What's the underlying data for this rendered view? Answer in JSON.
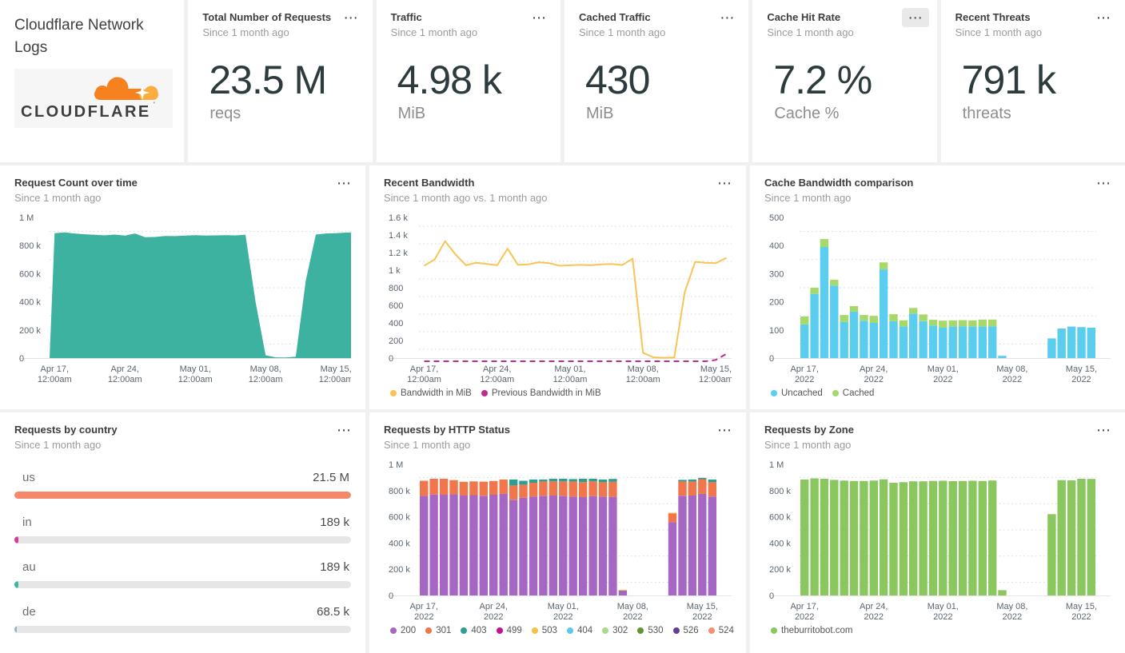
{
  "header": {
    "title": "Cloudflare Network Logs",
    "logo_text": "CLOUDFLARE",
    "logo_mark": "'"
  },
  "menu_icon": "⋯",
  "kpis": [
    {
      "title": "Total Number of Requests",
      "subtitle": "Since 1 month ago",
      "value": "23.5 M",
      "unit": "reqs"
    },
    {
      "title": "Traffic",
      "subtitle": "Since 1 month ago",
      "value": "4.98 k",
      "unit": "MiB"
    },
    {
      "title": "Cached Traffic",
      "subtitle": "Since 1 month ago",
      "value": "430",
      "unit": "MiB"
    },
    {
      "title": "Cache Hit Rate",
      "subtitle": "Since 1 month ago",
      "value": "7.2 %",
      "unit": "Cache %"
    },
    {
      "title": "Recent Threats",
      "subtitle": "Since 1 month ago",
      "value": "791 k",
      "unit": "threats"
    }
  ],
  "chart_data": [
    {
      "id": "request-count-over-time",
      "title": "Request Count over time",
      "subtitle": "Since 1 month ago",
      "type": "area",
      "color": "#3db2a0",
      "n": 30,
      "ymax": 1000,
      "ylabel_unit": "requests",
      "yticks": [
        {
          "v": 0,
          "l": "0"
        },
        {
          "v": 200,
          "l": "200 k"
        },
        {
          "v": 400,
          "l": "400 k"
        },
        {
          "v": 600,
          "l": "600 k"
        },
        {
          "v": 800,
          "l": "800 k"
        },
        {
          "v": 1000,
          "l": "1 M"
        }
      ],
      "xticks": [
        {
          "i": 0,
          "l1": "Apr 17,",
          "l2": "12:00am"
        },
        {
          "i": 7,
          "l1": "Apr 24,",
          "l2": "12:00am"
        },
        {
          "i": 14,
          "l1": "May 01,",
          "l2": "12:00am"
        },
        {
          "i": 21,
          "l1": "May 08,",
          "l2": "12:00am"
        },
        {
          "i": 28,
          "l1": "May 15,",
          "l2": "12:00am"
        }
      ],
      "values": [
        888,
        893,
        886,
        880,
        876,
        873,
        878,
        871,
        886,
        859,
        861,
        868,
        867,
        871,
        874,
        871,
        872,
        874,
        872,
        876,
        400,
        20,
        5,
        4,
        10,
        550,
        878,
        886,
        888,
        892
      ]
    },
    {
      "id": "recent-bandwidth",
      "title": "Recent Bandwidth",
      "subtitle": "Since 1 month ago vs. 1 month ago",
      "type": "line",
      "n": 30,
      "ymax": 1600,
      "yticks": [
        {
          "v": 0,
          "l": "0"
        },
        {
          "v": 200,
          "l": "200"
        },
        {
          "v": 400,
          "l": "400"
        },
        {
          "v": 600,
          "l": "600"
        },
        {
          "v": 800,
          "l": "800"
        },
        {
          "v": 1000,
          "l": "1 k"
        },
        {
          "v": 1200,
          "l": "1.2 k"
        },
        {
          "v": 1400,
          "l": "1.4 k"
        },
        {
          "v": 1600,
          "l": "1.6 k"
        }
      ],
      "xticks": [
        {
          "i": 0,
          "l1": "Apr 17,",
          "l2": "12:00am"
        },
        {
          "i": 7,
          "l1": "Apr 24,",
          "l2": "12:00am"
        },
        {
          "i": 14,
          "l1": "May 01,",
          "l2": "12:00am"
        },
        {
          "i": 21,
          "l1": "May 08,",
          "l2": "12:00am"
        },
        {
          "i": 28,
          "l1": "May 15,",
          "l2": "12:00am"
        }
      ],
      "series": [
        {
          "name": "Bandwidth in MiB",
          "color": "#f8c455",
          "values": [
            1050,
            1120,
            1330,
            1180,
            1055,
            1085,
            1070,
            1055,
            1245,
            1060,
            1065,
            1090,
            1080,
            1050,
            1055,
            1060,
            1055,
            1065,
            1070,
            1058,
            1130,
            60,
            8,
            4,
            6,
            750,
            1095,
            1085,
            1080,
            1140
          ]
        },
        {
          "name": "Previous Bandwidth in MiB",
          "color": "#c22b8c",
          "dash": "7 5",
          "offset": 4,
          "values": [
            0,
            0,
            0,
            0,
            0,
            0,
            0,
            0,
            0,
            0,
            0,
            0,
            0,
            0,
            0,
            0,
            0,
            0,
            0,
            0,
            0,
            0,
            0,
            0,
            0,
            0,
            0,
            0,
            15,
            85
          ]
        }
      ]
    },
    {
      "id": "cache-bandwidth-comparison",
      "title": "Cache Bandwidth comparison",
      "subtitle": "Since 1 month ago",
      "type": "stacked-bar",
      "n": 30,
      "ymax": 500,
      "yticks": [
        {
          "v": 0,
          "l": "0"
        },
        {
          "v": 100,
          "l": "100"
        },
        {
          "v": 200,
          "l": "200"
        },
        {
          "v": 300,
          "l": "300"
        },
        {
          "v": 400,
          "l": "400"
        },
        {
          "v": 500,
          "l": "500"
        }
      ],
      "xticks": [
        {
          "i": 0,
          "l1": "Apr 17,",
          "l2": "2022"
        },
        {
          "i": 7,
          "l1": "Apr 24,",
          "l2": "2022"
        },
        {
          "i": 14,
          "l1": "May 01,",
          "l2": "2022"
        },
        {
          "i": 21,
          "l1": "May 08,",
          "l2": "2022"
        },
        {
          "i": 28,
          "l1": "May 15,",
          "l2": "2022"
        }
      ],
      "series": [
        {
          "name": "Uncached",
          "color": "#5bcdef",
          "values": [
            120,
            228,
            395,
            258,
            128,
            165,
            133,
            125,
            315,
            131,
            112,
            158,
            131,
            116,
            108,
            112,
            113,
            112,
            112,
            113,
            8,
            0,
            0,
            0,
            0,
            70,
            105,
            112,
            110,
            108
          ]
        },
        {
          "name": "Cached",
          "color": "#a6d96a",
          "values": [
            28,
            22,
            28,
            20,
            25,
            20,
            20,
            25,
            25,
            25,
            22,
            20,
            24,
            20,
            25,
            22,
            22,
            22,
            25,
            24,
            0,
            0,
            0,
            0,
            0,
            0,
            0,
            0,
            0,
            0
          ]
        }
      ]
    },
    {
      "id": "requests-by-country",
      "title": "Requests by country",
      "subtitle": "Since 1 month ago",
      "type": "hbar",
      "rows": [
        {
          "label": "us",
          "value": "21.5 M",
          "pct": 100,
          "color": "#f5876b"
        },
        {
          "label": "in",
          "value": "189 k",
          "pct": 1.3,
          "color": "#da3a96"
        },
        {
          "label": "au",
          "value": "189 k",
          "pct": 1.3,
          "color": "#3fb5a5"
        },
        {
          "label": "de",
          "value": "68.5 k",
          "pct": 0.6,
          "color": "#8fb8bc"
        }
      ]
    },
    {
      "id": "requests-by-http-status",
      "title": "Requests by HTTP Status",
      "subtitle": "Since 1 month ago",
      "type": "stacked-bar",
      "n": 30,
      "ymax": 1000,
      "yticks": [
        {
          "v": 0,
          "l": "0"
        },
        {
          "v": 200,
          "l": "200 k"
        },
        {
          "v": 400,
          "l": "400 k"
        },
        {
          "v": 600,
          "l": "600 k"
        },
        {
          "v": 800,
          "l": "800 k"
        },
        {
          "v": 1000,
          "l": "1 M"
        }
      ],
      "xticks": [
        {
          "i": 0,
          "l1": "Apr 17,",
          "l2": "2022"
        },
        {
          "i": 7,
          "l1": "Apr 24,",
          "l2": "2022"
        },
        {
          "i": 14,
          "l1": "May 01,",
          "l2": "2022"
        },
        {
          "i": 21,
          "l1": "May 08,",
          "l2": "2022"
        },
        {
          "i": 28,
          "l1": "May 15,",
          "l2": "2022"
        }
      ],
      "series": [
        {
          "name": "200",
          "color": "#a667c4",
          "values": [
            760,
            770,
            768,
            772,
            762,
            765,
            760,
            768,
            775,
            730,
            745,
            755,
            760,
            762,
            760,
            755,
            750,
            758,
            755,
            752,
            38,
            0,
            0,
            0,
            0,
            560,
            760,
            762,
            775,
            755
          ]
        },
        {
          "name": "301",
          "color": "#f1764b",
          "values": [
            115,
            120,
            122,
            108,
            105,
            105,
            108,
            105,
            110,
            110,
            100,
            105,
            110,
            108,
            110,
            115,
            115,
            112,
            110,
            115,
            0,
            0,
            0,
            0,
            0,
            65,
            110,
            108,
            112,
            110
          ]
        },
        {
          "name": "403",
          "color": "#2d9e92",
          "values": [
            0,
            0,
            0,
            0,
            0,
            0,
            0,
            0,
            0,
            45,
            30,
            25,
            15,
            20,
            20,
            18,
            25,
            20,
            20,
            22,
            0,
            0,
            0,
            0,
            0,
            0,
            12,
            15,
            10,
            20
          ]
        },
        {
          "name": "499",
          "color": "#c2138f"
        },
        {
          "name": "503",
          "color": "#f6c244",
          "values": [
            0,
            0,
            0,
            0,
            0,
            0,
            0,
            0,
            0,
            0,
            0,
            0,
            0,
            0,
            0,
            0,
            0,
            0,
            0,
            0,
            6,
            0,
            0,
            0,
            0,
            6,
            0,
            0,
            0,
            0
          ]
        },
        {
          "name": "404",
          "color": "#5bc8ec"
        },
        {
          "name": "302",
          "color": "#a8d98e"
        },
        {
          "name": "530",
          "color": "#5e9732"
        },
        {
          "name": "526",
          "color": "#663d96"
        },
        {
          "name": "524",
          "color": "#f69070"
        }
      ]
    },
    {
      "id": "requests-by-zone",
      "title": "Requests by Zone",
      "subtitle": "Since 1 month ago",
      "type": "stacked-bar",
      "n": 30,
      "ymax": 1000,
      "yticks": [
        {
          "v": 0,
          "l": "0"
        },
        {
          "v": 200,
          "l": "200 k"
        },
        {
          "v": 400,
          "l": "400 k"
        },
        {
          "v": 600,
          "l": "600 k"
        },
        {
          "v": 800,
          "l": "800 k"
        },
        {
          "v": 1000,
          "l": "1 M"
        }
      ],
      "xticks": [
        {
          "i": 0,
          "l1": "Apr 17,",
          "l2": "2022"
        },
        {
          "i": 7,
          "l1": "Apr 24,",
          "l2": "2022"
        },
        {
          "i": 14,
          "l1": "May 01,",
          "l2": "2022"
        },
        {
          "i": 21,
          "l1": "May 08,",
          "l2": "2022"
        },
        {
          "i": 28,
          "l1": "May 15,",
          "l2": "2022"
        }
      ],
      "series": [
        {
          "name": "theburritobot.com",
          "color": "#8bc75f",
          "values": [
            885,
            893,
            890,
            882,
            876,
            873,
            873,
            876,
            886,
            860,
            864,
            871,
            871,
            874,
            875,
            872,
            873,
            875,
            873,
            877,
            40,
            0,
            0,
            0,
            0,
            620,
            880,
            878,
            890,
            889
          ]
        }
      ]
    }
  ]
}
